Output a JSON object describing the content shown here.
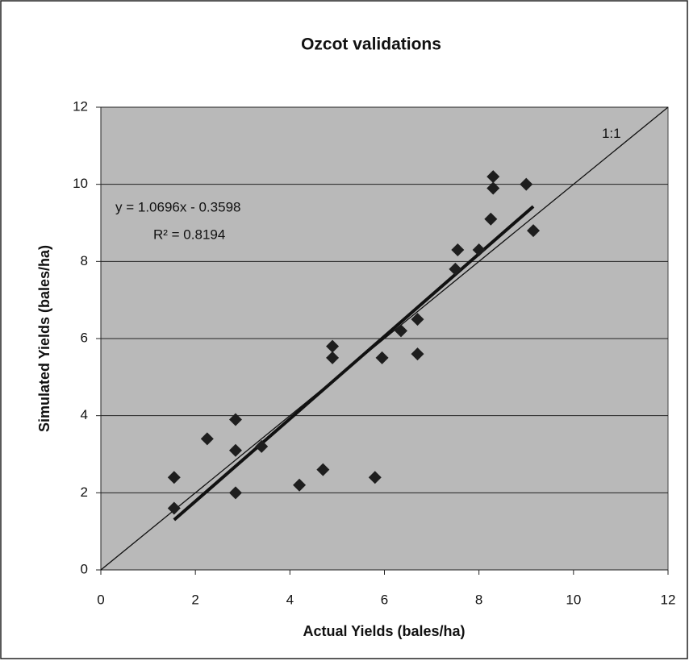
{
  "chart_data": {
    "type": "scatter",
    "title": "Ozcot validations",
    "x_label": "Actual Yields (bales/ha)",
    "y_label": "Simulated Yields (bales/ha)",
    "x": [
      1.55,
      1.55,
      2.25,
      2.85,
      2.85,
      2.85,
      3.4,
      4.2,
      4.7,
      4.9,
      4.9,
      5.8,
      5.95,
      6.35,
      6.7,
      6.7,
      7.5,
      7.55,
      8.0,
      8.25,
      8.3,
      8.3,
      9.0,
      9.15
    ],
    "values": [
      2.4,
      1.6,
      3.4,
      3.9,
      3.1,
      2.0,
      3.2,
      2.2,
      2.6,
      5.8,
      5.5,
      2.4,
      5.5,
      6.2,
      6.5,
      5.6,
      7.8,
      8.3,
      8.3,
      9.1,
      9.9,
      10.2,
      10.0,
      8.8
    ],
    "color": "#1e1e1e",
    "xlim": [
      0,
      12
    ],
    "ylim": [
      0,
      12
    ],
    "xticks": [
      0,
      2,
      4,
      6,
      8,
      10,
      12
    ],
    "yticks": [
      0,
      2,
      4,
      6,
      8,
      10,
      12
    ],
    "grid": true,
    "trendline": {
      "slope": 1.0696,
      "intercept": -0.3598,
      "equation": "y = 1.0696x - 0.3598",
      "r2_label": "R² = 0.8194"
    },
    "reference_line_label": "1:1"
  }
}
